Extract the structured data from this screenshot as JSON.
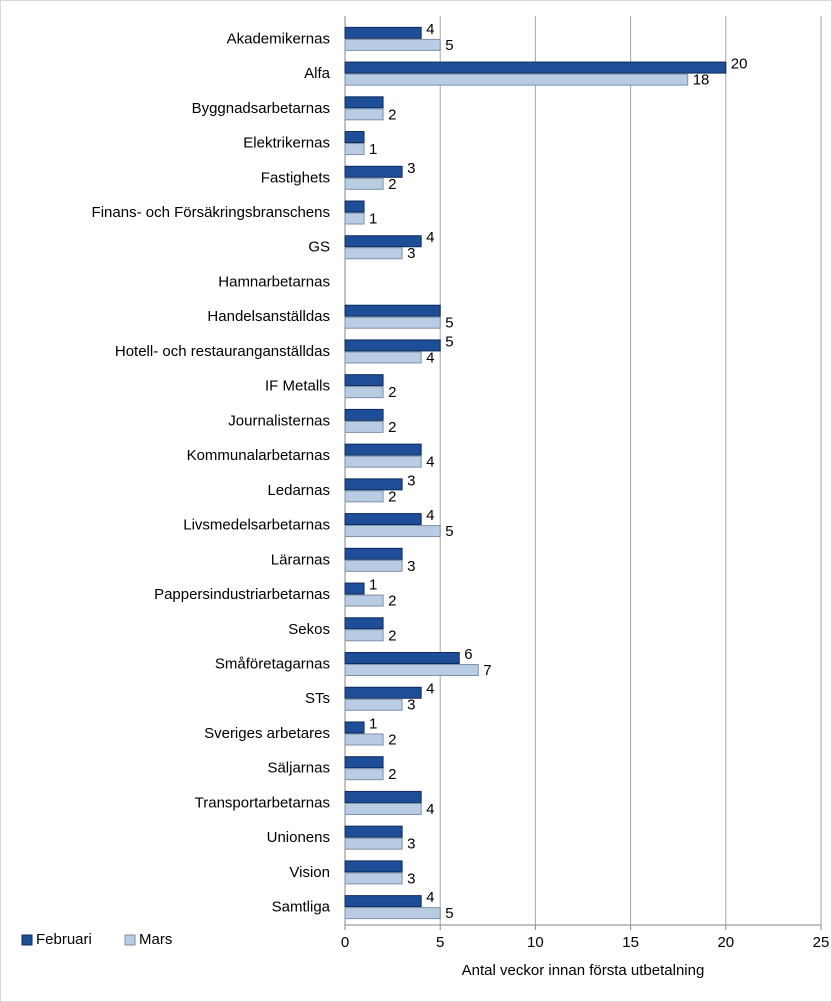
{
  "chart_data": {
    "type": "bar",
    "x_label": "Antal veckor innan första utbetalning",
    "categories": [
      "Akademikernas",
      "Alfa",
      "Byggnadsarbetarnas",
      "Elektrikernas",
      "Fastighets",
      "Finans- och Försäkringsbranschens",
      "GS",
      "Hamnarbetarnas",
      "Handelsanställdas",
      "Hotell- och restauranganställdas",
      "IF Metalls",
      "Journalisternas",
      "Kommunalarbetarnas",
      "Ledarnas",
      "Livsmedelsarbetarnas",
      "Lärarnas",
      "Pappersindustriarbetarnas",
      "Sekos",
      "Småföretagarnas",
      "STs",
      "Sveriges arbetares",
      "Säljarnas",
      "Transportarbetarnas",
      "Unionens",
      "Vision",
      "Samtliga"
    ],
    "series": [
      {
        "name": "Februari",
        "color": "#1f4e99",
        "values": [
          4,
          20,
          2,
          1,
          3,
          1,
          4,
          null,
          5,
          5,
          2,
          2,
          4,
          3,
          4,
          3,
          1,
          2,
          6,
          4,
          1,
          2,
          4,
          3,
          3,
          4
        ],
        "value_labels": [
          "4",
          "20",
          null,
          null,
          "3",
          null,
          "4",
          null,
          null,
          "5",
          null,
          null,
          null,
          "3",
          "4",
          null,
          "1",
          null,
          "6",
          "4",
          "1",
          null,
          null,
          null,
          null,
          "4"
        ]
      },
      {
        "name": "Mars",
        "color": "#b8cce4",
        "values": [
          5,
          18,
          2,
          1,
          2,
          1,
          3,
          null,
          5,
          4,
          2,
          2,
          4,
          2,
          5,
          3,
          2,
          2,
          7,
          3,
          2,
          2,
          4,
          3,
          3,
          5
        ]
      }
    ],
    "xlim": [
      0,
      25
    ],
    "xticks": [
      0,
      5,
      10,
      15,
      20,
      25
    ],
    "grid": true
  }
}
